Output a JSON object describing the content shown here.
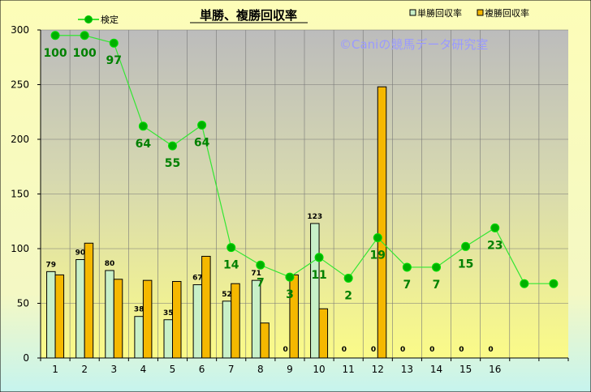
{
  "chart_data": {
    "type": "bar",
    "title": "単勝、複勝回収率",
    "watermark": "©Caniの競馬データ研究室",
    "categories": [
      "1",
      "2",
      "3",
      "4",
      "5",
      "6",
      "7",
      "8",
      "9",
      "10",
      "11",
      "12",
      "13",
      "14",
      "15",
      "16",
      "",
      ""
    ],
    "ylim": [
      0,
      300
    ],
    "yticks": [
      0,
      50,
      100,
      150,
      200,
      250,
      300
    ],
    "series": [
      {
        "name": "単勝回収率",
        "kind": "bar",
        "color": "#c8f0c8",
        "values": [
          79,
          90,
          80,
          38,
          35,
          67,
          52,
          71,
          0,
          123,
          0,
          0,
          0,
          0,
          0,
          0,
          null,
          null
        ],
        "labels": [
          "79",
          "90",
          "80",
          "38",
          "35",
          "67",
          "52",
          "71",
          "0",
          "123",
          "0",
          "0",
          "0",
          "0",
          "0",
          "0",
          "",
          ""
        ]
      },
      {
        "name": "複勝回収率",
        "kind": "bar",
        "color": "#f5b800",
        "values": [
          76,
          105,
          72,
          71,
          70,
          93,
          68,
          32,
          76,
          45,
          0,
          248,
          0,
          0,
          0,
          0,
          null,
          null
        ]
      },
      {
        "name": "検定",
        "kind": "line",
        "color": "#00c800",
        "values": [
          295,
          295,
          288,
          212,
          194,
          213,
          101,
          85,
          74,
          92,
          73,
          110,
          83,
          83,
          102,
          119,
          68,
          68
        ],
        "labels": [
          "100",
          "100",
          "97",
          "64",
          "55",
          "64",
          "14",
          "7",
          "3",
          "11",
          "2",
          "19",
          "7",
          "7",
          "15",
          "23",
          "",
          ""
        ]
      }
    ],
    "grid": true,
    "legend": "top"
  }
}
